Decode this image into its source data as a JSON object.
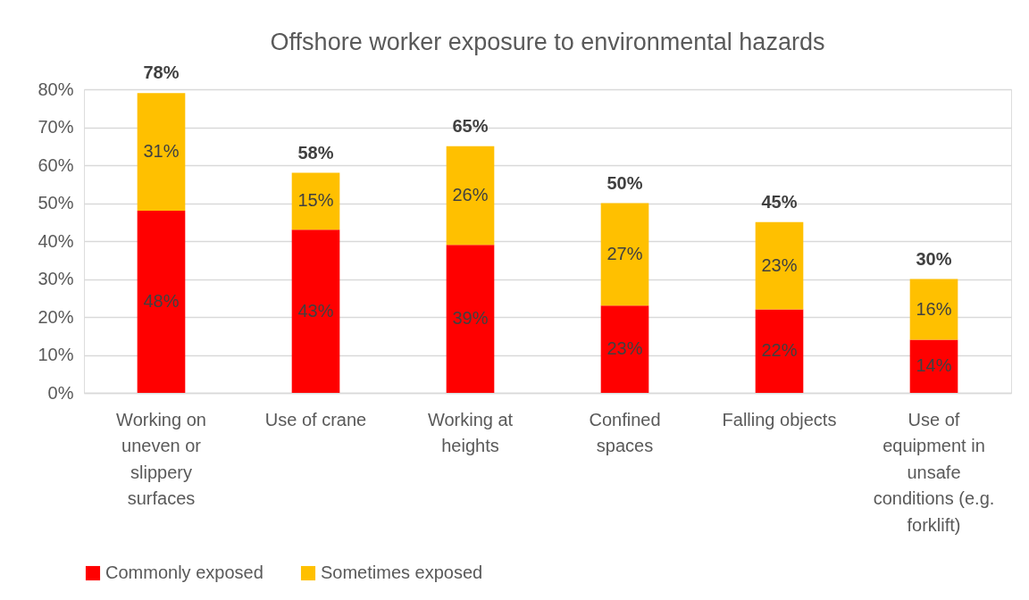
{
  "chart_data": {
    "type": "bar",
    "title": "Offshore worker exposure to environmental hazards",
    "categories": [
      "Working on uneven or slippery surfaces",
      "Use of crane",
      "Working at heights",
      "Confined spaces",
      "Falling objects",
      "Use of equipment in unsafe conditions (e.g. forklift)"
    ],
    "stacked": true,
    "series": [
      {
        "name": "Commonly exposed",
        "color": "#ff0000",
        "values": [
          48,
          43,
          39,
          23,
          22,
          14
        ],
        "value_labels": [
          "48%",
          "43%",
          "39%",
          "23%",
          "22%",
          "14%"
        ]
      },
      {
        "name": "Sometimes exposed",
        "color": "#ffc000",
        "values": [
          31,
          15,
          26,
          27,
          23,
          16
        ],
        "value_labels": [
          "31%",
          "15%",
          "26%",
          "27%",
          "23%",
          "16%"
        ]
      }
    ],
    "totals": [
      "78%",
      "58%",
      "65%",
      "50%",
      "45%",
      "30%"
    ],
    "ylim": [
      0,
      80
    ],
    "yticks": [
      {
        "value": 0,
        "label": "0%"
      },
      {
        "value": 10,
        "label": "10%"
      },
      {
        "value": 20,
        "label": "20%"
      },
      {
        "value": 30,
        "label": "30%"
      },
      {
        "value": 40,
        "label": "40%"
      },
      {
        "value": 50,
        "label": "50%"
      },
      {
        "value": 60,
        "label": "60%"
      },
      {
        "value": 70,
        "label": "70%"
      },
      {
        "value": 80,
        "label": "80%"
      }
    ],
    "grid": "y",
    "legend": "bottom"
  }
}
